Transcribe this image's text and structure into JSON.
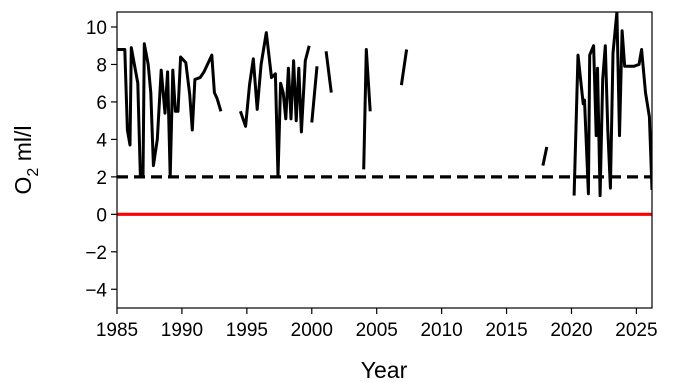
{
  "chart_data": {
    "type": "line",
    "xlabel": "Year",
    "ylabel": {
      "main": "O",
      "sub": "2",
      "unit": " ml/l"
    },
    "xlim": [
      1985,
      2026.2
    ],
    "ylim": [
      -5,
      10.8
    ],
    "xticks": [
      1985,
      1990,
      1995,
      2000,
      2005,
      2010,
      2015,
      2020,
      2025
    ],
    "yticks": [
      -4,
      -2,
      0,
      2,
      4,
      6,
      8,
      10
    ],
    "ytick_labels": [
      "−4",
      "−2",
      "0",
      "2",
      "4",
      "6",
      "8",
      "10"
    ],
    "grid": false,
    "reference_lines": [
      {
        "y": 2,
        "style": "dashed",
        "color": "#000000"
      },
      {
        "y": 0,
        "style": "solid",
        "color": "#ff0000"
      }
    ],
    "series_color": "#000000",
    "segments": [
      [
        [
          1985.0,
          8.8
        ],
        [
          1985.3,
          8.8
        ],
        [
          1985.6,
          8.8
        ],
        [
          1985.8,
          4.5
        ],
        [
          1986.0,
          3.7
        ],
        [
          1986.1,
          8.9
        ],
        [
          1986.6,
          7.0
        ],
        [
          1986.8,
          2.0
        ],
        [
          1987.0,
          2.0
        ],
        [
          1987.1,
          9.1
        ],
        [
          1987.4,
          8.0
        ],
        [
          1987.6,
          6.5
        ],
        [
          1987.8,
          2.6
        ],
        [
          1988.1,
          4.0
        ],
        [
          1988.4,
          7.7
        ],
        [
          1988.7,
          5.4
        ],
        [
          1988.9,
          7.6
        ],
        [
          1989.1,
          2.0
        ],
        [
          1989.3,
          7.7
        ],
        [
          1989.5,
          5.5
        ],
        [
          1989.7,
          5.5
        ],
        [
          1989.9,
          8.4
        ],
        [
          1990.3,
          8.1
        ],
        [
          1990.6,
          6.4
        ],
        [
          1990.8,
          4.5
        ],
        [
          1991.0,
          7.2
        ],
        [
          1991.4,
          7.3
        ],
        [
          1991.7,
          7.6
        ],
        [
          1992.1,
          8.2
        ],
        [
          1992.3,
          8.5
        ],
        [
          1992.5,
          6.5
        ],
        [
          1992.7,
          6.2
        ],
        [
          1993.0,
          5.5
        ]
      ],
      [
        [
          1994.5,
          5.5
        ],
        [
          1994.9,
          4.7
        ],
        [
          1995.2,
          6.9
        ],
        [
          1995.5,
          8.3
        ],
        [
          1995.8,
          5.6
        ],
        [
          1996.1,
          8.0
        ],
        [
          1996.5,
          9.7
        ],
        [
          1996.9,
          7.3
        ],
        [
          1997.2,
          7.5
        ],
        [
          1997.4,
          2.0
        ],
        [
          1997.6,
          7.0
        ],
        [
          1997.8,
          6.5
        ],
        [
          1998.0,
          5.1
        ],
        [
          1998.2,
          7.8
        ],
        [
          1998.4,
          5.1
        ],
        [
          1998.6,
          8.2
        ],
        [
          1998.8,
          5.0
        ],
        [
          1999.0,
          7.8
        ],
        [
          1999.2,
          4.4
        ],
        [
          1999.5,
          8.2
        ],
        [
          1999.8,
          9.0
        ]
      ],
      [
        [
          2000.0,
          4.9
        ],
        [
          2000.4,
          7.9
        ]
      ],
      [
        [
          2001.1,
          8.7
        ],
        [
          2001.5,
          6.5
        ]
      ],
      [
        [
          2004.0,
          2.4
        ],
        [
          2004.2,
          8.8
        ],
        [
          2004.5,
          5.5
        ]
      ],
      [
        [
          2006.9,
          6.9
        ],
        [
          2007.3,
          8.8
        ]
      ],
      [
        [
          2017.8,
          2.6
        ],
        [
          2018.1,
          3.6
        ]
      ],
      [
        [
          2020.2,
          1.0
        ],
        [
          2020.5,
          8.5
        ],
        [
          2020.9,
          5.9
        ],
        [
          2021.0,
          6.1
        ],
        [
          2021.3,
          1.1
        ],
        [
          2021.4,
          8.5
        ],
        [
          2021.7,
          9.0
        ],
        [
          2021.9,
          4.2
        ],
        [
          2022.0,
          7.8
        ],
        [
          2022.2,
          1.0
        ],
        [
          2022.4,
          7.2
        ],
        [
          2022.6,
          9.0
        ],
        [
          2022.8,
          4.5
        ],
        [
          2023.0,
          1.4
        ],
        [
          2023.2,
          8.6
        ],
        [
          2023.5,
          10.8
        ],
        [
          2023.7,
          4.2
        ],
        [
          2023.9,
          9.8
        ],
        [
          2024.1,
          7.9
        ],
        [
          2024.8,
          7.9
        ],
        [
          2025.2,
          8.0
        ],
        [
          2025.4,
          8.8
        ],
        [
          2025.7,
          6.5
        ],
        [
          2026.0,
          5.2
        ],
        [
          2026.2,
          1.3
        ]
      ]
    ]
  }
}
